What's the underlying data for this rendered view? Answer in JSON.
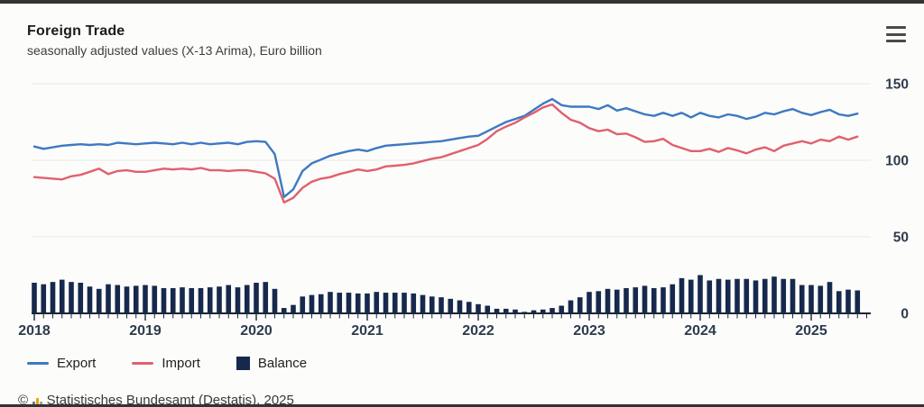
{
  "header": {
    "title": "Foreign Trade",
    "subtitle": "seasonally adjusted values (X-13 Arima), Euro billion"
  },
  "menu": {
    "icon": "hamburger-icon"
  },
  "legend": [
    {
      "label": "Export",
      "color": "#3d79c2",
      "marker": "line"
    },
    {
      "label": "Import",
      "color": "#e0606f",
      "marker": "line"
    },
    {
      "label": "Balance",
      "color": "#16294d",
      "marker": "square"
    }
  ],
  "footer": {
    "prefix": "©",
    "logo": "destatis-bars-icon",
    "source": "Statistisches Bundesamt (Destatis), 2025"
  },
  "colors": {
    "export": "#3d79c2",
    "import": "#e0606f",
    "balance": "#16294d",
    "grid": "#e9e9e6",
    "axis": "#1c2638",
    "tick_label": "#2e3b4e"
  },
  "chart_data": {
    "type": "combo",
    "x_start": "2018-01",
    "x_freq": "monthly",
    "year_labels": [
      "2018",
      "2019",
      "2020",
      "2021",
      "2022",
      "2023",
      "2024",
      "2025"
    ],
    "ylabel": "Euro billion",
    "ylim": [
      0,
      150
    ],
    "yticks": [
      0,
      50,
      100,
      150
    ],
    "grid": true,
    "legend_position": "bottom",
    "series": [
      {
        "name": "Export",
        "type": "line",
        "color": "#3d79c2",
        "values": [
          109,
          107.5,
          108.5,
          109.5,
          110,
          110.5,
          110,
          110.5,
          110,
          111.5,
          111,
          110.5,
          111,
          111.5,
          111,
          110.5,
          111.5,
          110.5,
          111.5,
          110.5,
          111,
          111.5,
          110.5,
          112,
          112.5,
          112,
          104,
          76,
          81,
          93,
          98,
          100.5,
          103,
          104.5,
          106,
          107,
          106,
          108,
          109.5,
          110,
          110.5,
          111,
          111.5,
          112,
          112.5,
          113.5,
          114.5,
          115.5,
          116,
          119,
          122,
          125,
          127,
          129,
          133,
          137,
          140,
          136,
          135,
          135,
          135,
          133.5,
          136,
          132.5,
          134,
          132,
          130,
          129,
          131,
          129,
          131,
          128,
          131,
          129,
          128,
          130,
          129,
          127,
          128.5,
          131,
          130,
          132,
          133.5,
          131,
          129.5,
          131.5,
          133,
          130,
          129,
          130.5
        ]
      },
      {
        "name": "Import",
        "type": "line",
        "color": "#e0606f",
        "values": [
          89,
          88.5,
          88,
          87.5,
          89.5,
          90.5,
          92.5,
          94.5,
          91,
          93,
          93.5,
          92.5,
          92.5,
          93.5,
          94.5,
          94,
          94.5,
          94,
          95,
          93.5,
          93.5,
          93,
          93.5,
          93.5,
          92.5,
          91.5,
          88,
          72.5,
          75.5,
          82,
          86,
          88,
          89,
          91,
          92.5,
          94,
          93,
          94,
          96,
          96.5,
          97,
          98,
          99.5,
          101,
          102,
          104,
          106,
          108,
          110,
          114,
          119,
          122,
          124.5,
          128,
          131,
          134.5,
          136.5,
          131,
          126.5,
          124.5,
          121,
          119,
          120,
          117,
          117.5,
          115,
          112,
          112.5,
          114,
          110,
          108,
          106,
          106,
          107.5,
          105.5,
          108,
          106.5,
          104.5,
          107,
          108.5,
          106,
          109.5,
          111,
          112.5,
          111,
          113.5,
          112.5,
          115.5,
          113.5,
          115.5
        ]
      },
      {
        "name": "Balance",
        "type": "bar",
        "color": "#16294d",
        "values": [
          20,
          19,
          20.5,
          22,
          20.5,
          20,
          17.5,
          16,
          19,
          18.5,
          17.5,
          18,
          18.5,
          18,
          16.5,
          16.5,
          17,
          16.5,
          16.5,
          17,
          17.5,
          18.5,
          17,
          18.5,
          20,
          20.5,
          16,
          3.5,
          5.5,
          11,
          12,
          12.5,
          14,
          13.5,
          13.5,
          13,
          13,
          14,
          13.5,
          13.5,
          13.5,
          13,
          12,
          11,
          10.5,
          9.5,
          8.5,
          7.5,
          6,
          5,
          3,
          3,
          2.5,
          1,
          2,
          2.5,
          3.5,
          5,
          8.5,
          10.5,
          14,
          14.5,
          16,
          15.5,
          16.5,
          17,
          18,
          16.5,
          17,
          19,
          23,
          22,
          25,
          21.5,
          22.5,
          22,
          22.5,
          22.5,
          21.5,
          22.5,
          24,
          22.5,
          22.5,
          18.5,
          18.5,
          18,
          20.5,
          14.5,
          15.5,
          15
        ]
      }
    ]
  }
}
